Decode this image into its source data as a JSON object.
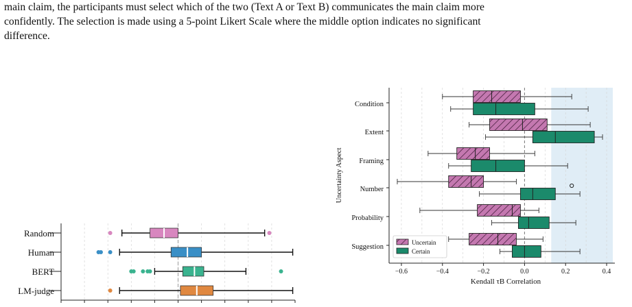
{
  "text": {
    "line1": "main claim, the participants must select which of the two (Text A or Text B) communicates the main claim more",
    "line2": "confidently. The selection is made using a 5-point Likert Scale where the middle option indicates no significant",
    "line3": "difference."
  },
  "left_chart": {
    "categories": [
      "Random",
      "Human",
      "BERT",
      "LM-judge"
    ]
  },
  "right_chart": {
    "categories": [
      "Condition",
      "Extent",
      "Framing",
      "Number",
      "Probability",
      "Suggestion"
    ],
    "ylabel": "Uncertainty Aspect",
    "xlabel": "Kendall τB Correlation",
    "xticks": [
      "−0.6",
      "−0.4",
      "−0.2",
      "0.0",
      "0.2",
      "0.4"
    ],
    "legend": [
      "Uncertain",
      "Certain"
    ]
  },
  "chart_data": [
    {
      "type": "box",
      "categories": [
        "Random",
        "Human",
        "BERT",
        "LM-judge"
      ],
      "colors": [
        "#d887bf",
        "#3a8fc6",
        "#3ab38f",
        "#e08840"
      ],
      "series": [
        {
          "values": {
            "whislo": 0.26,
            "q1": 0.38,
            "med": 0.44,
            "q3": 0.5,
            "whishi": 0.87,
            "fliers": [
              0.21,
              0.89
            ]
          }
        },
        {
          "values": {
            "whislo": 0.25,
            "q1": 0.47,
            "med": 0.54,
            "q3": 0.6,
            "whishi": 0.99,
            "fliers": [
              0.16,
              0.17,
              0.21
            ]
          }
        },
        {
          "values": {
            "whislo": 0.4,
            "q1": 0.52,
            "med": 0.57,
            "q3": 0.61,
            "whishi": 0.79,
            "fliers": [
              0.3,
              0.31,
              0.35,
              0.37,
              0.38,
              0.94
            ]
          }
        },
        {
          "values": {
            "whislo": 0.25,
            "q1": 0.51,
            "med": 0.58,
            "q3": 0.65,
            "whishi": 0.99,
            "fliers": [
              0.21
            ]
          }
        }
      ]
    },
    {
      "type": "box",
      "title": "",
      "xlabel": "Kendall τB Correlation",
      "ylabel": "Uncertainty Aspect",
      "xlim": [
        -0.66,
        0.44
      ],
      "shaded_region": [
        0.13,
        0.43
      ],
      "categories": [
        "Condition",
        "Extent",
        "Framing",
        "Number",
        "Probability",
        "Suggestion"
      ],
      "series": [
        {
          "name": "Uncertain",
          "color": "#c478b0",
          "hatch": true,
          "boxes": [
            {
              "whislo": -0.4,
              "q1": -0.25,
              "med": -0.16,
              "q3": -0.02,
              "whishi": 0.23,
              "fliers": []
            },
            {
              "whislo": -0.27,
              "q1": -0.17,
              "med": -0.01,
              "q3": 0.11,
              "whishi": 0.32,
              "fliers": []
            },
            {
              "whislo": -0.47,
              "q1": -0.33,
              "med": -0.24,
              "q3": -0.17,
              "whishi": 0.05,
              "fliers": []
            },
            {
              "whislo": -0.62,
              "q1": -0.37,
              "med": -0.26,
              "q3": -0.2,
              "whishi": -0.04,
              "fliers": []
            },
            {
              "whislo": -0.51,
              "q1": -0.23,
              "med": -0.06,
              "q3": -0.02,
              "whishi": 0.07,
              "fliers": []
            },
            {
              "whislo": -0.37,
              "q1": -0.27,
              "med": -0.13,
              "q3": -0.04,
              "whishi": 0.09,
              "fliers": []
            }
          ]
        },
        {
          "name": "Certain",
          "color": "#1b8a6b",
          "hatch": false,
          "boxes": [
            {
              "whislo": -0.36,
              "q1": -0.25,
              "med": -0.14,
              "q3": 0.05,
              "whishi": 0.31,
              "fliers": []
            },
            {
              "whislo": -0.19,
              "q1": 0.04,
              "med": 0.15,
              "q3": 0.34,
              "whishi": 0.38,
              "fliers": []
            },
            {
              "whislo": -0.37,
              "q1": -0.26,
              "med": -0.14,
              "q3": 0.0,
              "whishi": 0.21,
              "fliers": []
            },
            {
              "whislo": -0.22,
              "q1": -0.02,
              "med": 0.04,
              "q3": 0.15,
              "whishi": 0.27,
              "fliers": [
                0.23
              ]
            },
            {
              "whislo": -0.16,
              "q1": -0.03,
              "med": 0.02,
              "q3": 0.12,
              "whishi": 0.25,
              "fliers": []
            },
            {
              "whislo": -0.12,
              "q1": -0.06,
              "med": 0.0,
              "q3": 0.08,
              "whishi": 0.27,
              "fliers": []
            }
          ]
        }
      ]
    }
  ]
}
